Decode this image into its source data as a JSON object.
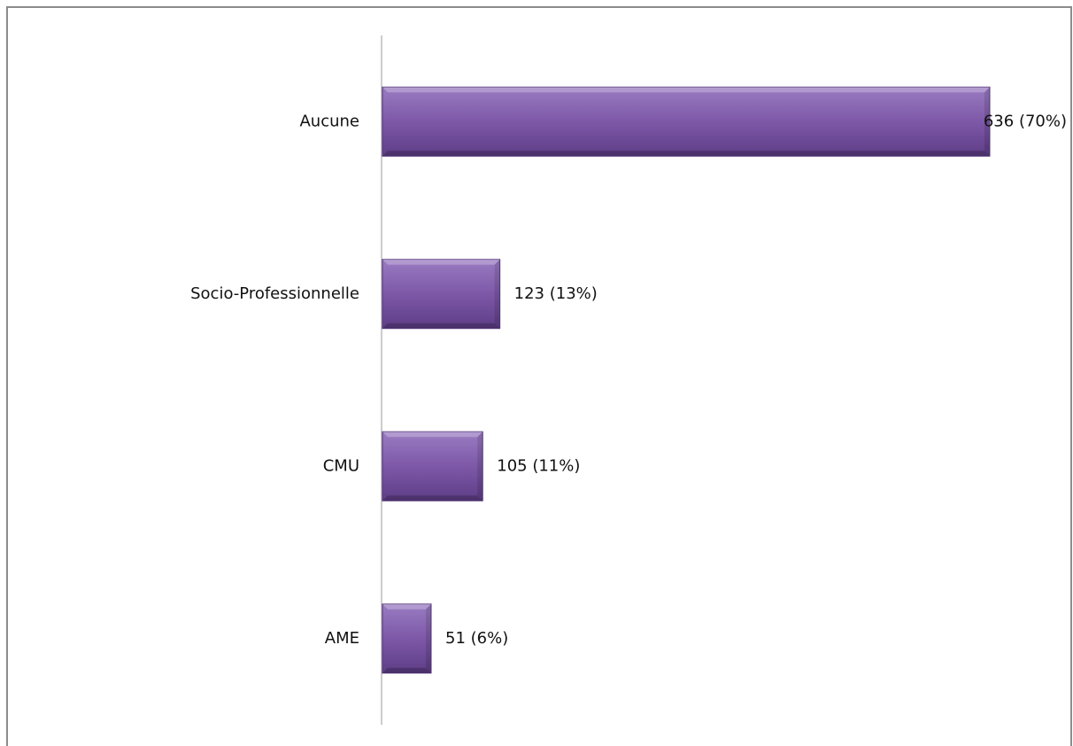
{
  "chart_data": {
    "type": "barh",
    "categories": [
      "Aucune",
      "Socio-Professionnelle",
      "CMU",
      "AME"
    ],
    "values": [
      636,
      123,
      105,
      51
    ],
    "value_labels": [
      "636 (70%)",
      "123 (13%)",
      "105 (11%)",
      "51 (6%)"
    ],
    "color": "#7d58a8"
  }
}
